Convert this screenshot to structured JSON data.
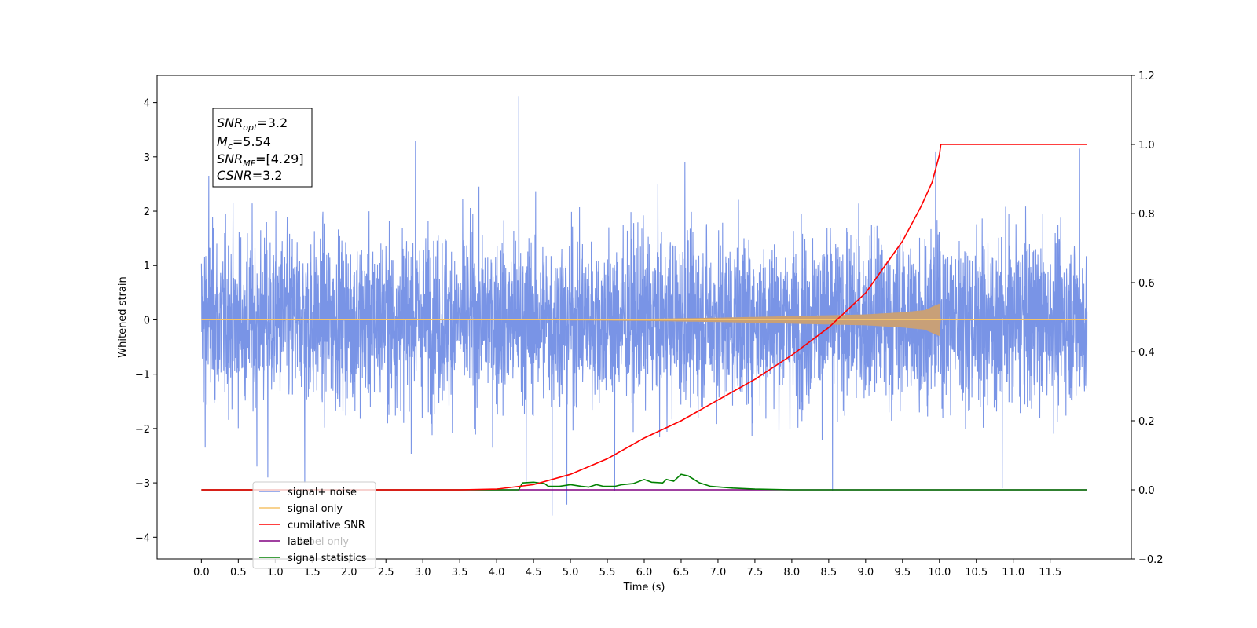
{
  "chart_data": {
    "type": "line",
    "xlabel": "Time (s)",
    "ylabel": "Whitened strain",
    "xlim": [
      -0.6,
      12.6
    ],
    "ylim": [
      -4.4,
      4.5
    ],
    "y2lim": [
      -0.2,
      1.2
    ],
    "x_ticks": [
      0.0,
      0.5,
      1.0,
      1.5,
      2.0,
      2.5,
      3.0,
      3.5,
      4.0,
      4.5,
      5.0,
      5.5,
      6.0,
      6.5,
      7.0,
      7.5,
      8.0,
      8.5,
      9.0,
      9.5,
      10.0,
      10.5,
      11.0,
      11.5
    ],
    "x_tick_labels": [
      "0.0",
      "0.5",
      "1.0",
      "1.5",
      "2.0",
      "2.5",
      "3.0",
      "3.5",
      "4.0",
      "4.5",
      "5.0",
      "5.5",
      "6.0",
      "6.5",
      "7.0",
      "7.5",
      "8.0",
      "8.5",
      "9.0",
      "9.5",
      "10.0",
      "10.5",
      "11.0",
      "11.5"
    ],
    "y_ticks": [
      -4,
      -3,
      -2,
      -1,
      0,
      1,
      2,
      3,
      4
    ],
    "y_tick_labels": [
      "−4",
      "−3",
      "−2",
      "−1",
      "0",
      "1",
      "2",
      "3",
      "4"
    ],
    "y2_ticks": [
      -0.2,
      0.0,
      0.2,
      0.4,
      0.6,
      0.8,
      1.0,
      1.2
    ],
    "y2_tick_labels": [
      "−0.2",
      "0.0",
      "0.2",
      "0.4",
      "0.6",
      "0.8",
      "1.0",
      "1.2"
    ],
    "grid": false,
    "legend_position": "lower-left",
    "noise": {
      "t_start": 0.0,
      "t_end": 12.0,
      "spikes": [
        {
          "x": 0.05,
          "y": 2.6
        },
        {
          "x": 0.1,
          "y": 2.65
        },
        {
          "x": 0.05,
          "y": -2.35
        },
        {
          "x": 0.75,
          "y": -2.7
        },
        {
          "x": 0.9,
          "y": -2.9
        },
        {
          "x": 1.4,
          "y": -3.0
        },
        {
          "x": 2.9,
          "y": 3.3
        },
        {
          "x": 4.3,
          "y": 4.12
        },
        {
          "x": 4.4,
          "y": -3.0
        },
        {
          "x": 4.75,
          "y": -3.6
        },
        {
          "x": 4.95,
          "y": -3.4
        },
        {
          "x": 5.6,
          "y": -3.15
        },
        {
          "x": 6.55,
          "y": 2.9
        },
        {
          "x": 8.55,
          "y": -3.15
        },
        {
          "x": 9.95,
          "y": 3.1
        },
        {
          "x": 10.85,
          "y": -3.1
        },
        {
          "x": 11.9,
          "y": 3.15
        }
      ]
    },
    "signal_envelope": [
      [
        0.0,
        0.0
      ],
      [
        4.0,
        0.0
      ],
      [
        5.0,
        0.01
      ],
      [
        6.0,
        0.02
      ],
      [
        7.0,
        0.04
      ],
      [
        8.0,
        0.07
      ],
      [
        9.0,
        0.1
      ],
      [
        9.5,
        0.14
      ],
      [
        9.8,
        0.18
      ],
      [
        10.0,
        0.3
      ],
      [
        10.02,
        0.0
      ],
      [
        12.0,
        0.0
      ]
    ],
    "cumulative_snr": [
      [
        0.0,
        0.0
      ],
      [
        3.5,
        0.0
      ],
      [
        4.0,
        0.002
      ],
      [
        4.5,
        0.015
      ],
      [
        5.0,
        0.045
      ],
      [
        5.5,
        0.09
      ],
      [
        6.0,
        0.15
      ],
      [
        6.5,
        0.2
      ],
      [
        7.0,
        0.26
      ],
      [
        7.5,
        0.32
      ],
      [
        8.0,
        0.39
      ],
      [
        8.5,
        0.47
      ],
      [
        9.0,
        0.57
      ],
      [
        9.5,
        0.72
      ],
      [
        9.75,
        0.82
      ],
      [
        9.9,
        0.89
      ],
      [
        10.0,
        0.97
      ],
      [
        10.02,
        1.0
      ],
      [
        12.0,
        1.0
      ]
    ],
    "label_only": [
      [
        0.0,
        0.0
      ],
      [
        12.0,
        0.0
      ]
    ],
    "signal_statistics": [
      [
        0.0,
        0.0
      ],
      [
        4.3,
        0.0
      ],
      [
        4.35,
        0.02
      ],
      [
        4.5,
        0.022
      ],
      [
        4.65,
        0.018
      ],
      [
        4.7,
        0.01
      ],
      [
        4.85,
        0.01
      ],
      [
        5.0,
        0.015
      ],
      [
        5.15,
        0.01
      ],
      [
        5.25,
        0.008
      ],
      [
        5.35,
        0.015
      ],
      [
        5.45,
        0.01
      ],
      [
        5.6,
        0.01
      ],
      [
        5.7,
        0.015
      ],
      [
        5.85,
        0.018
      ],
      [
        6.0,
        0.03
      ],
      [
        6.1,
        0.022
      ],
      [
        6.25,
        0.02
      ],
      [
        6.3,
        0.03
      ],
      [
        6.4,
        0.025
      ],
      [
        6.5,
        0.045
      ],
      [
        6.6,
        0.04
      ],
      [
        6.75,
        0.02
      ],
      [
        6.9,
        0.01
      ],
      [
        7.2,
        0.005
      ],
      [
        7.5,
        0.002
      ],
      [
        8.0,
        0.0
      ],
      [
        12.0,
        0.0
      ]
    ],
    "series": [
      {
        "name": "signal+ noise",
        "color": "#7994e6"
      },
      {
        "name": "signal only",
        "color": "#f5c46a"
      },
      {
        "name": "cumilative SNR",
        "color": "#ff0000"
      },
      {
        "name": "label",
        "color": "#800080"
      },
      {
        "name": "label only",
        "color": "#800080"
      },
      {
        "name": "signal statistics",
        "color": "#008000"
      }
    ],
    "signal_fill_color": "#c8a078",
    "annotation": {
      "snr_opt": {
        "base": "SNR",
        "sub": "opt",
        "value": "=3.2"
      },
      "mc": {
        "base": "M",
        "sub": "c",
        "value": "=5.54"
      },
      "snr_mf": {
        "base": "SNR",
        "sub": "MF",
        "value": "=[4.29]"
      },
      "csnr": {
        "base": "CSNR",
        "sub": "",
        "value": "=3.2"
      }
    }
  }
}
